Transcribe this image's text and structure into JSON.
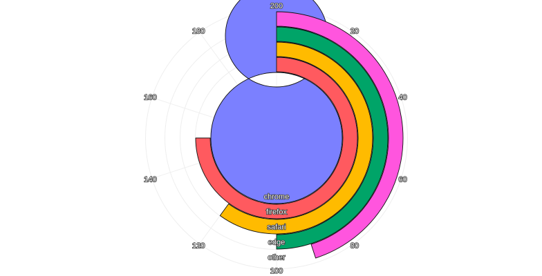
{
  "chart_data": {
    "type": "radial-bar",
    "angle_axis": {
      "min": 0,
      "max": 200,
      "ticks": [
        "200",
        "20",
        "40",
        "60",
        "80",
        "100",
        "120",
        "140",
        "160",
        "180"
      ],
      "start": "top",
      "direction": "clockwise"
    },
    "grid": true,
    "categories": [
      "chrome",
      "firefox",
      "safari",
      "edge",
      "other"
    ],
    "values": [
      200,
      150,
      120,
      100,
      90
    ],
    "colors": [
      "#7b80ff",
      "#ff5a5f",
      "#ffbb00",
      "#00a468",
      "#ff55de"
    ]
  }
}
